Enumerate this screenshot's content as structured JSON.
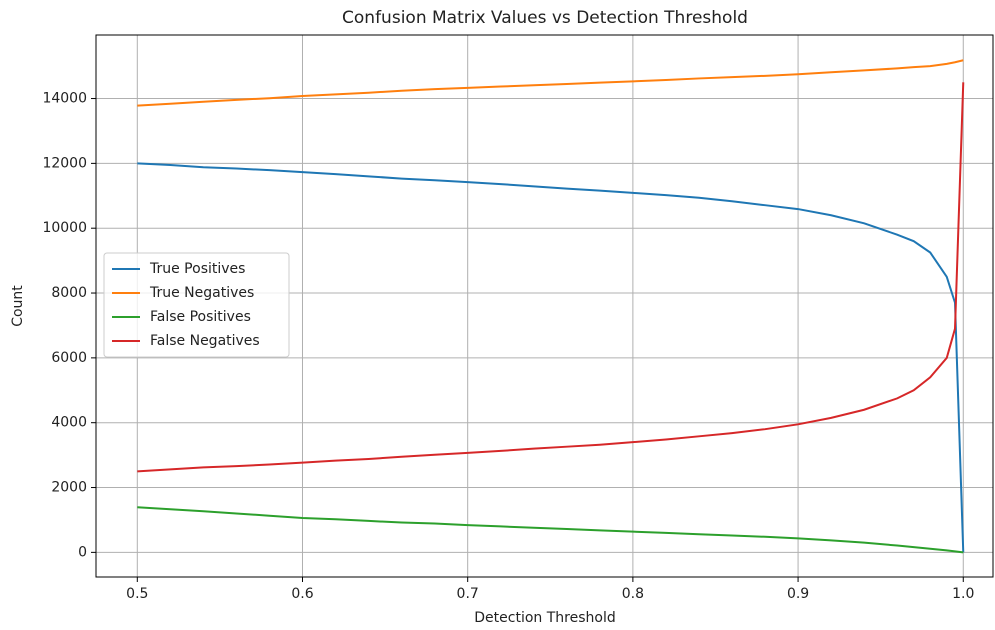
{
  "chart_data": {
    "type": "line",
    "title": "Confusion Matrix Values vs Detection Threshold",
    "x_label": "Detection Threshold",
    "y_label": "Count",
    "x": [
      0.5,
      0.52,
      0.54,
      0.56,
      0.58,
      0.6,
      0.62,
      0.64,
      0.66,
      0.68,
      0.7,
      0.72,
      0.74,
      0.76,
      0.78,
      0.8,
      0.82,
      0.84,
      0.86,
      0.88,
      0.9,
      0.92,
      0.94,
      0.96,
      0.97,
      0.98,
      0.99,
      0.995,
      1.0
    ],
    "series": [
      {
        "name": "True Positives",
        "color": "#1f77b4",
        "values": [
          12000,
          11950,
          11880,
          11840,
          11790,
          11730,
          11670,
          11600,
          11530,
          11480,
          11420,
          11360,
          11290,
          11220,
          11160,
          11090,
          11020,
          10940,
          10830,
          10710,
          10590,
          10400,
          10150,
          9800,
          9600,
          9250,
          8500,
          7700,
          0
        ]
      },
      {
        "name": "True Negatives",
        "color": "#ff7f0e",
        "values": [
          13780,
          13840,
          13900,
          13960,
          14010,
          14080,
          14130,
          14180,
          14240,
          14290,
          14330,
          14370,
          14410,
          14450,
          14490,
          14530,
          14570,
          14620,
          14660,
          14700,
          14750,
          14810,
          14870,
          14930,
          14970,
          15000,
          15070,
          15120,
          15180
        ]
      },
      {
        "name": "False Positives",
        "color": "#2ca02c",
        "values": [
          1390,
          1330,
          1270,
          1200,
          1130,
          1060,
          1020,
          970,
          920,
          890,
          840,
          800,
          760,
          720,
          680,
          640,
          600,
          560,
          520,
          480,
          430,
          370,
          300,
          210,
          160,
          110,
          60,
          30,
          0
        ]
      },
      {
        "name": "False Negatives",
        "color": "#d62728",
        "values": [
          2500,
          2560,
          2620,
          2660,
          2710,
          2770,
          2830,
          2880,
          2950,
          3010,
          3070,
          3130,
          3200,
          3260,
          3320,
          3400,
          3480,
          3580,
          3680,
          3800,
          3950,
          4150,
          4400,
          4750,
          5000,
          5400,
          6000,
          6900,
          14500
        ]
      }
    ],
    "xlim": [
      0.475,
      1.018
    ],
    "ylim": [
      -760,
      15960
    ],
    "xticks": [
      0.5,
      0.6,
      0.7,
      0.8,
      0.9,
      {
        "value": 1,
        "label": "1.0"
      }
    ],
    "yticks": [
      0,
      2000,
      4000,
      6000,
      8000,
      10000,
      12000,
      14000
    ],
    "grid": true,
    "legend": "center left"
  }
}
